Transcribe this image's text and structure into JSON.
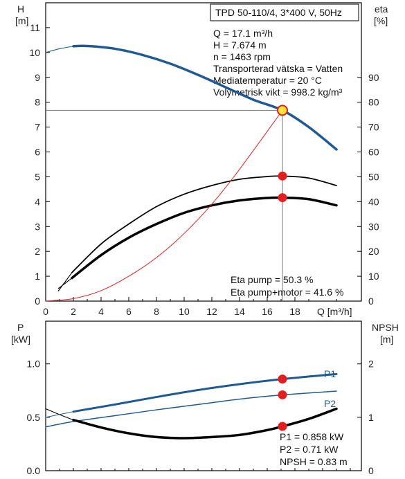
{
  "header": {
    "title": "TPD 50-110/4, 3*400 V, 50Hz"
  },
  "top_axes": {
    "left_label": "H",
    "left_unit": "[m]",
    "right_label": "eta",
    "right_unit": "[%]",
    "x_label": "Q [m³/h]"
  },
  "bottom_axes": {
    "left_label": "P",
    "left_unit": "[kW]",
    "right_label": "NPSH",
    "right_unit": "[m]"
  },
  "operating_info": [
    "Q = 17.1 m³/h",
    "H = 7.674 m",
    "n = 1463 rpm",
    "Transporterad vätska = Vatten",
    "Mediatemperatur = 20 °C",
    "Volymetrisk vikt = 998.2 kg/m³"
  ],
  "eta_info": [
    "Eta pump = 50.3 %",
    "Eta pump+motor = 41.6 %"
  ],
  "power_info": [
    "P1 = 0.858 kW",
    "P2 = 0.71 kW",
    "NPSH = 0.83 m"
  ],
  "colors": {
    "blue": "#1f5a92",
    "red": "#e41e1e",
    "thin_red": "#e02020",
    "black": "#000000"
  },
  "chart_data": [
    {
      "type": "line",
      "x_ticks": [
        "0",
        "2",
        "4",
        "6",
        "8",
        "10",
        "12",
        "14",
        "16",
        "18"
      ],
      "y_left_ticks": [
        "0",
        "1",
        "2",
        "3",
        "4",
        "5",
        "6",
        "7",
        "8",
        "9",
        "10",
        "11"
      ],
      "y_right_ticks": [
        "0",
        "10",
        "20",
        "30",
        "40",
        "50",
        "60",
        "70",
        "80",
        "90"
      ],
      "xlim": [
        0,
        22.8
      ],
      "ylim": [
        0,
        12
      ],
      "y2lim": [
        0,
        120
      ],
      "grid": false,
      "series": [
        {
          "id": "H",
          "axis": "left",
          "color": "#1f5a92",
          "width": 3.5,
          "x": [
            2,
            3,
            5,
            7,
            9,
            11,
            13,
            15,
            17.1,
            19,
            21
          ],
          "y": [
            10.25,
            10.26,
            10.15,
            9.9,
            9.55,
            9.1,
            8.6,
            8.1,
            7.674,
            7.0,
            6.1
          ],
          "dashed_ext": {
            "x": [
              0,
              1,
              2
            ],
            "y": [
              10.0,
              10.15,
              10.25
            ]
          }
        },
        {
          "id": "eta_pump",
          "axis": "right",
          "color": "#000000",
          "width": 1.8,
          "x": [
            1.9,
            4,
            6,
            8,
            10,
            12,
            14,
            16,
            17.1,
            19,
            21
          ],
          "y": [
            11.5,
            23,
            31,
            38,
            43,
            46.5,
            49,
            50.1,
            50.3,
            49.5,
            46.5
          ],
          "dashed_ext": {
            "x": [
              0.9,
              1.9
            ],
            "y": [
              4,
              11.5
            ]
          }
        },
        {
          "id": "eta_pump_motor",
          "axis": "right",
          "color": "#000000",
          "width": 3.5,
          "x": [
            1.9,
            4,
            6,
            8,
            10,
            12,
            14,
            16,
            17.1,
            19,
            21
          ],
          "y": [
            9.3,
            18.5,
            25.5,
            31,
            35.5,
            38.5,
            40.5,
            41.5,
            41.6,
            41,
            38.5
          ],
          "dashed_ext": {
            "x": [
              0.9,
              1.9
            ],
            "y": [
              5,
              9.3
            ]
          }
        },
        {
          "id": "system_curve",
          "axis": "left",
          "color": "#e02020",
          "width": 1,
          "x": [
            0,
            2,
            4,
            6,
            8,
            10,
            12,
            14,
            17.1
          ],
          "y": [
            0,
            0.1,
            0.42,
            1.0,
            1.75,
            2.72,
            3.9,
            5.3,
            7.674
          ]
        }
      ],
      "duty_points": [
        {
          "x": 17.1,
          "y": 7.674,
          "axis": "left",
          "style": "ring"
        },
        {
          "x": 17.1,
          "y": 50.3,
          "axis": "right"
        },
        {
          "x": 17.1,
          "y": 41.6,
          "axis": "right"
        }
      ]
    },
    {
      "type": "line",
      "x_ticks": [],
      "y_left_ticks": [
        "0.0",
        "0.5",
        "1.0"
      ],
      "y_right_ticks": [
        "0",
        "1",
        "2"
      ],
      "xlim": [
        0,
        22.8
      ],
      "ylim": [
        0,
        1.4
      ],
      "y2lim": [
        0,
        2.8
      ],
      "grid": false,
      "series": [
        {
          "id": "P1",
          "name": "P1",
          "axis": "left",
          "color": "#1f5a92",
          "width": 3,
          "x": [
            2,
            5,
            8,
            11,
            14,
            17.1,
            21
          ],
          "y": [
            0.553,
            0.62,
            0.69,
            0.755,
            0.81,
            0.858,
            0.905
          ]
        },
        {
          "id": "P2",
          "name": "P2",
          "axis": "left",
          "color": "#1f5a92",
          "width": 1.5,
          "x": [
            0,
            2,
            5,
            8,
            11,
            14,
            17.1,
            21
          ],
          "y": [
            0.41,
            0.46,
            0.515,
            0.57,
            0.62,
            0.67,
            0.71,
            0.745
          ]
        },
        {
          "id": "NPSH",
          "axis": "right",
          "color": "#000000",
          "width": 3.5,
          "x": [
            2,
            4,
            6,
            8,
            10,
            12,
            14,
            16,
            17.1,
            19,
            21
          ],
          "y": [
            0.95,
            0.81,
            0.7,
            0.63,
            0.61,
            0.63,
            0.67,
            0.76,
            0.83,
            0.97,
            1.16
          ],
          "dashed_ext": {
            "x": [
              0,
              1,
              2
            ],
            "y": [
              1.16,
              1.05,
              0.95
            ]
          }
        },
        {
          "id": "P_ext",
          "axis": "left",
          "color": "#1f5a92",
          "width": 1,
          "x": [
            0,
            2
          ],
          "y": [
            0.5,
            0.553
          ]
        }
      ],
      "duty_points": [
        {
          "x": 17.1,
          "y": 0.858,
          "axis": "left"
        },
        {
          "x": 17.1,
          "y": 0.71,
          "axis": "left"
        },
        {
          "x": 17.1,
          "y": 0.83,
          "axis": "right"
        }
      ]
    }
  ]
}
